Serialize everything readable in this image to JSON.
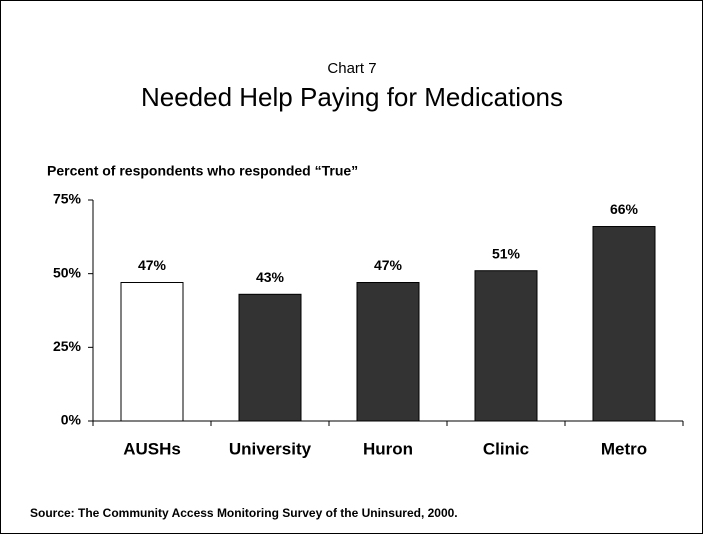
{
  "chart_data": {
    "type": "bar",
    "subtitle": "Chart 7",
    "title": "Needed Help Paying for Medications",
    "y_axis_label": "Percent of respondents who responded “True”",
    "categories": [
      "AUSHs",
      "University",
      "Huron",
      "Clinic",
      "Metro"
    ],
    "values": [
      47,
      43,
      47,
      51,
      66
    ],
    "value_labels": [
      "47%",
      "43%",
      "47%",
      "51%",
      "66%"
    ],
    "colors": [
      "#ffffff",
      "#333333",
      "#333333",
      "#333333",
      "#333333"
    ],
    "ylim": [
      0,
      75
    ],
    "yticks": [
      {
        "value": 0,
        "label": "0%"
      },
      {
        "value": 25,
        "label": "25%"
      },
      {
        "value": 50,
        "label": "50%"
      },
      {
        "value": 75,
        "label": "75%"
      }
    ],
    "source": "Source: The Community Access Monitoring Survey of the Uninsured, 2000."
  }
}
